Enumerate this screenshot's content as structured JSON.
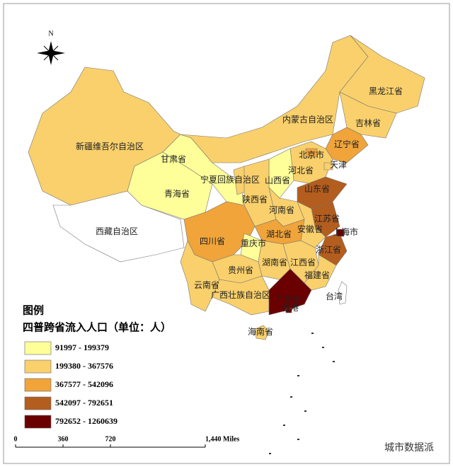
{
  "map": {
    "legend_title": "图例",
    "legend_subtitle": "四普跨省流入人口（单位：人）",
    "classes": [
      {
        "label": "91997 - 199379",
        "color": "#ffff99"
      },
      {
        "label": "199380 - 367576",
        "color": "#f9d06b"
      },
      {
        "label": "367577 - 542096",
        "color": "#f0a43a"
      },
      {
        "label": "542097 - 792651",
        "color": "#b35d1e"
      },
      {
        "label": "792652 - 1260639",
        "color": "#6b0000"
      }
    ],
    "provinces": [
      {
        "name": "新疆维吾尔自治区",
        "color": "#f9d06b"
      },
      {
        "name": "西藏自治区",
        "color": "#ffffff"
      },
      {
        "name": "青海省",
        "color": "#ffff99"
      },
      {
        "name": "甘肃省",
        "color": "#ffff99"
      },
      {
        "name": "内蒙古自治区",
        "color": "#f9d06b"
      },
      {
        "name": "黑龙江省",
        "color": "#f9d06b"
      },
      {
        "name": "吉林省",
        "color": "#f9d06b"
      },
      {
        "name": "辽宁省",
        "color": "#f0a43a"
      },
      {
        "name": "河北省",
        "color": "#f9d06b"
      },
      {
        "name": "山西省",
        "color": "#ffff99"
      },
      {
        "name": "宁夏回族自治区",
        "color": "#f9d06b"
      },
      {
        "name": "陕西省",
        "color": "#f9d06b"
      },
      {
        "name": "山东省",
        "color": "#b35d1e"
      },
      {
        "name": "河南省",
        "color": "#f9d06b"
      },
      {
        "name": "江苏省",
        "color": "#b35d1e"
      },
      {
        "name": "安徽省",
        "color": "#f9d06b"
      },
      {
        "name": "浙江省",
        "color": "#b35d1e"
      },
      {
        "name": "湖北省",
        "color": "#f0a43a"
      },
      {
        "name": "四川省",
        "color": "#f0a43a"
      },
      {
        "name": "重庆市",
        "color": "#ffff99"
      },
      {
        "name": "湖南省",
        "color": "#f9d06b"
      },
      {
        "name": "江西省",
        "color": "#f9d06b"
      },
      {
        "name": "福建省",
        "color": "#f9d06b"
      },
      {
        "name": "贵州省",
        "color": "#f9d06b"
      },
      {
        "name": "云南省",
        "color": "#f9d06b"
      },
      {
        "name": "广西壮族自治区",
        "color": "#f9d06b"
      },
      {
        "name": "广东省",
        "color": "#6b0000"
      },
      {
        "name": "海南省",
        "color": "#f9d06b"
      },
      {
        "name": "台湾",
        "color": "#ffffff"
      },
      {
        "name": "北京市",
        "color": "#f0a43a"
      },
      {
        "name": "天津",
        "color": "#f9d06b"
      },
      {
        "name": "上海市",
        "color": "#6b0000"
      },
      {
        "name": "香港",
        "color": "#6b0000"
      }
    ],
    "compass": "N",
    "scale_ticks": [
      0,
      360,
      720,
      {
        "value": 1440,
        "label": "1,440 Miles"
      }
    ],
    "watermark": "城市数据派"
  }
}
